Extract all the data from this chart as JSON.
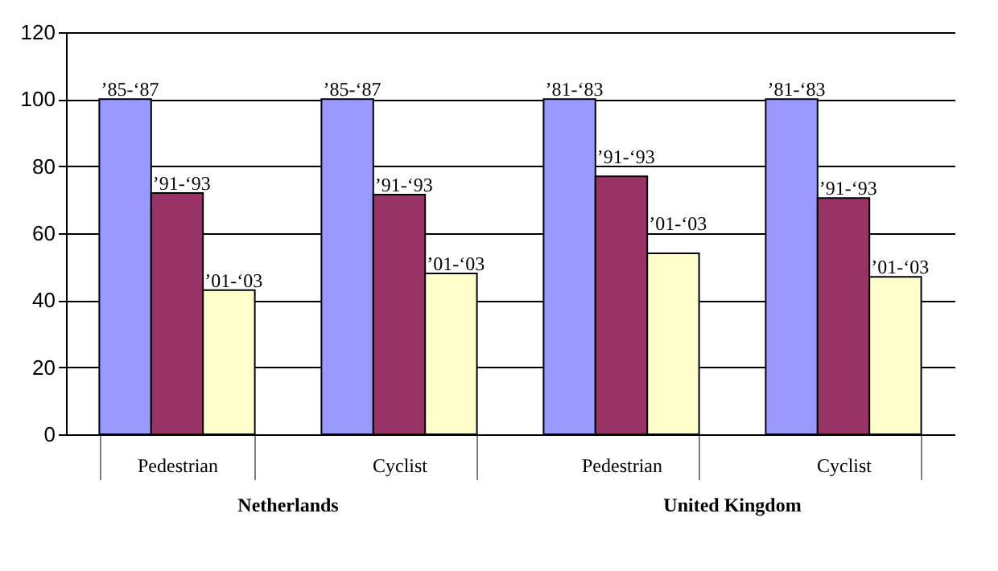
{
  "chart_data": {
    "type": "bar",
    "categories": [
      "Pedestrian",
      "Cyclist",
      "Pedestrian",
      "Cyclist"
    ],
    "series": [
      {
        "color": "#9999ff",
        "values": [
          100,
          100,
          100,
          100
        ],
        "value_labels": [
          "’85-‘87",
          "’85-‘87",
          "’81-‘83",
          "’81-‘83"
        ]
      },
      {
        "color": "#993366",
        "values": [
          72,
          71.5,
          77,
          70.5
        ],
        "value_labels": [
          "’91-‘93",
          "’91-‘93",
          "’91-‘93",
          "’91-‘93"
        ]
      },
      {
        "color": "#ffffcc",
        "values": [
          43,
          48,
          54,
          47
        ],
        "value_labels": [
          "’01-‘03",
          "’01-‘03",
          "’01-‘03",
          "’01-‘03"
        ]
      }
    ],
    "annotations": [
      "Netherlands",
      "United Kingdom"
    ],
    "ylim": [
      0,
      120
    ],
    "yticks": [
      0,
      20,
      40,
      60,
      80,
      100,
      120
    ],
    "grid": "y",
    "legend": false
  }
}
